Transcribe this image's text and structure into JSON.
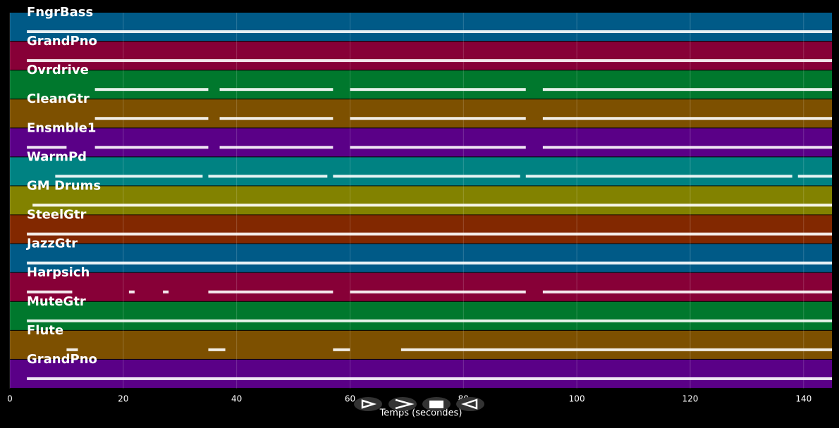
{
  "chart_data": {
    "type": "timeline",
    "x_label": "Temps (secondes)",
    "xlim": [
      0,
      145
    ],
    "xticks": [
      0,
      20,
      40,
      60,
      80,
      100,
      120,
      140
    ],
    "grid": true,
    "series": [
      {
        "name": "FngrBass",
        "color": "#005a87",
        "spans": [
          [
            3,
            145
          ]
        ]
      },
      {
        "name": "GrandPno",
        "color": "#870037",
        "spans": [
          [
            3,
            145
          ]
        ]
      },
      {
        "name": "Ovrdrive",
        "color": "#00782d",
        "spans": [
          [
            15,
            35
          ],
          [
            37,
            57
          ],
          [
            60,
            91
          ],
          [
            94,
            145
          ]
        ]
      },
      {
        "name": "CleanGtr",
        "color": "#7d5000",
        "spans": [
          [
            15,
            35
          ],
          [
            37,
            57
          ],
          [
            60,
            91
          ],
          [
            94,
            145
          ]
        ]
      },
      {
        "name": "Ensmble1",
        "color": "#5a0087",
        "spans": [
          [
            3,
            10
          ],
          [
            15,
            35
          ],
          [
            37,
            57
          ],
          [
            60,
            91
          ],
          [
            94,
            145
          ]
        ]
      },
      {
        "name": "WarmPd",
        "color": "#008282",
        "spans": [
          [
            8,
            34
          ],
          [
            35,
            56
          ],
          [
            57,
            90
          ],
          [
            91,
            138
          ],
          [
            139,
            145
          ]
        ]
      },
      {
        "name": "GM Drums",
        "color": "#828200",
        "spans": [
          [
            4,
            145
          ]
        ]
      },
      {
        "name": "SteelGtr",
        "color": "#822800",
        "spans": [
          [
            3,
            145
          ]
        ]
      },
      {
        "name": "JazzGtr",
        "color": "#005a87",
        "spans": [
          [
            3,
            145
          ]
        ]
      },
      {
        "name": "Harpsich",
        "color": "#870037",
        "spans": [
          [
            3,
            11
          ],
          [
            21,
            22
          ],
          [
            27,
            28
          ],
          [
            35,
            57
          ],
          [
            60,
            91
          ],
          [
            94,
            145
          ]
        ]
      },
      {
        "name": "MuteGtr",
        "color": "#00782d",
        "spans": [
          [
            3,
            145
          ]
        ]
      },
      {
        "name": "Flute",
        "color": "#7d5000",
        "spans": [
          [
            10,
            12
          ],
          [
            35,
            38
          ],
          [
            57,
            60
          ],
          [
            69,
            145
          ]
        ]
      },
      {
        "name": "GrandPno",
        "color": "#5a0087",
        "spans": [
          [
            3,
            145
          ]
        ]
      }
    ]
  }
}
